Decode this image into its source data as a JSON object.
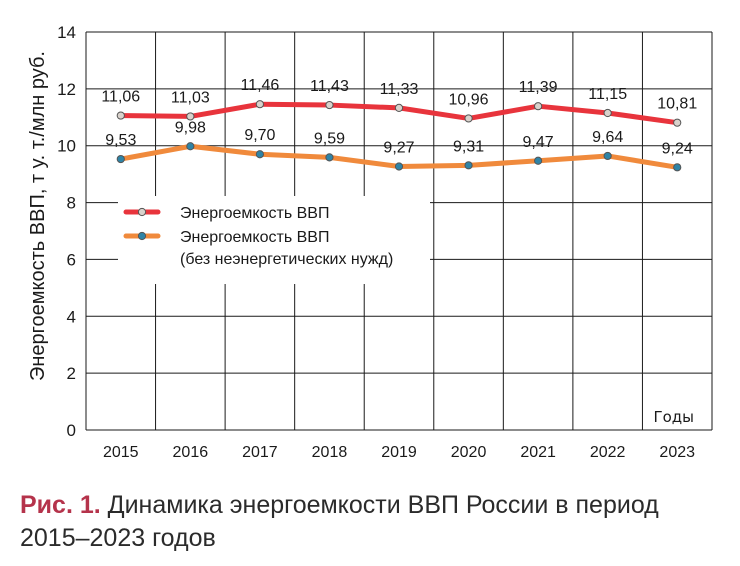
{
  "chart_data": {
    "type": "line",
    "title": "",
    "xlabel": "Годы",
    "ylabel": "Энергоемкость ВВП, т у. т./млн руб.",
    "ylim": [
      0,
      14
    ],
    "yticks": [
      "0",
      "2",
      "4",
      "6",
      "8",
      "10",
      "12",
      "14"
    ],
    "categories": [
      "2015",
      "2016",
      "2017",
      "2018",
      "2019",
      "2020",
      "2021",
      "2022",
      "2023"
    ],
    "grid": true,
    "legend_position": "left-middle",
    "series": [
      {
        "name": "Энергоемкость ВВП",
        "legend_lines": [
          "Энергоемкость ВВП"
        ],
        "color": "#e8343c",
        "marker_color": "#d9d2cc",
        "values": [
          11.06,
          11.03,
          11.46,
          11.43,
          11.33,
          10.96,
          11.39,
          11.15,
          10.81
        ],
        "labels": [
          "11,06",
          "11,03",
          "11,46",
          "11,43",
          "11,33",
          "10,96",
          "11,39",
          "11,15",
          "10,81"
        ]
      },
      {
        "name": "Энергоемкость ВВП (без неэнергетических нужд)",
        "legend_lines": [
          "Энергоемкость ВВП",
          "(без неэнергетических нужд)"
        ],
        "color": "#f08a3c",
        "marker_color": "#2f84a6",
        "values": [
          9.53,
          9.98,
          9.7,
          9.59,
          9.27,
          9.31,
          9.47,
          9.64,
          9.24
        ],
        "labels": [
          "9,53",
          "9,98",
          "9,70",
          "9,59",
          "9,27",
          "9,31",
          "9,47",
          "9,64",
          "9,24"
        ]
      }
    ]
  },
  "caption": {
    "figure_label": "Рис. 1.",
    "text": "Динамика энергоемкости ВВП России в период 2015–2023 годов"
  }
}
